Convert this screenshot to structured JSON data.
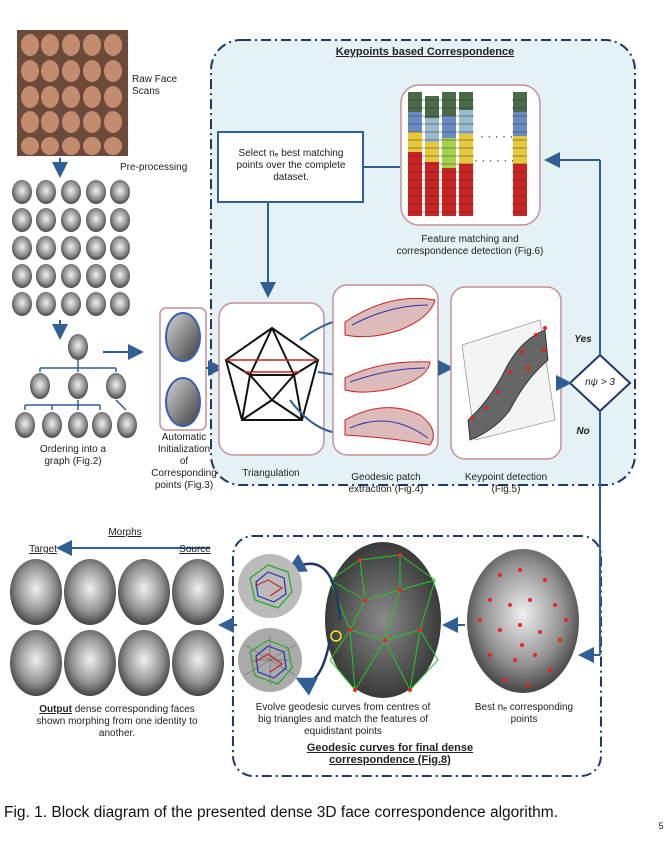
{
  "diagram": {
    "keypoints_box_title": "Keypoints based Correspondence",
    "raw_scans_label": "Raw Face\nScans",
    "preprocessing_label": "Pre-processing",
    "select_box_text": "Select nₑ best matching\npoints over the complete\ndataset.",
    "feature_matching_label": "Feature matching and\ncorrespondence detection (Fig.6)",
    "ordering_label": "Ordering into a\ngraph (Fig.2)",
    "auto_init_label": "Automatic\nInitialization\nof\nCorresponding\npoints (Fig.3)",
    "triangulation_label": "Triangulation",
    "geodesic_patch_label": "Geodesic patch\nextraction (Fig.4)",
    "keypoint_detection_label": "Keypoint detection\n(Fig.5)",
    "decision_text": "nψ > 3",
    "yes_label": "Yes",
    "no_label": "No",
    "morphs_label": "Morphs",
    "target_label": "Target",
    "source_label": "Source",
    "output_bold": "Output",
    "output_text": " dense corresponding faces\nshown morphing from one identity to\nanother.",
    "evolve_text": "Evolve geodesic curves from centres of\nbig triangles  and match the  features of\nequidistant points",
    "best_points_text": "Best nₑ  corresponding\npoints",
    "geodesic_box_title": "Geodesic curves for final dense\ncorrespondence (Fig.8)",
    "page_number": "5"
  },
  "caption": "Fig. 1. Block diagram of the presented dense 3D face correspondence algorithm.",
  "colors": {
    "dashed_border": "#1f3a66",
    "panel_bg": "#e4f2f6",
    "pink_border": "#c98f96",
    "arrow": "#2f5f95"
  }
}
